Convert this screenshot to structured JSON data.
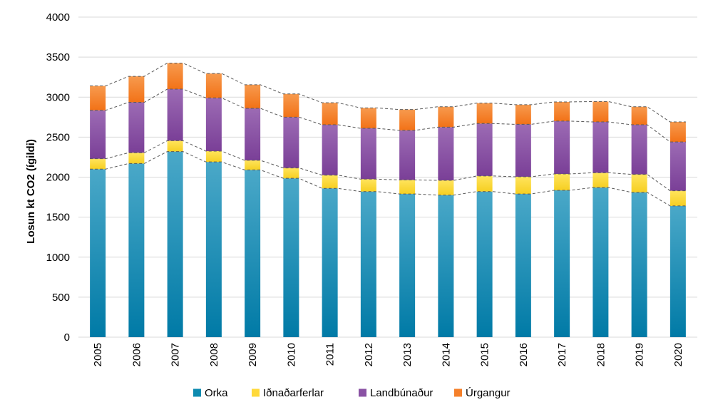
{
  "chart_data": {
    "type": "bar",
    "stacked": true,
    "title": "",
    "xlabel": "",
    "ylabel": "Losun kt CO2 (ígildi)",
    "ylim": [
      0,
      4000
    ],
    "yticks": [
      0,
      500,
      1000,
      1500,
      2000,
      2500,
      3000,
      3500,
      4000
    ],
    "grid": true,
    "legend_position": "bottom",
    "dashed_trend_lines": true,
    "categories": [
      "2005",
      "2006",
      "2007",
      "2008",
      "2009",
      "2010",
      "2011",
      "2012",
      "2013",
      "2014",
      "2015",
      "2016",
      "2017",
      "2018",
      "2019",
      "2020"
    ],
    "series": [
      {
        "name": "Orka",
        "color": "#0e8bb0",
        "values": [
          2100,
          2170,
          2320,
          2190,
          2090,
          1985,
          1860,
          1820,
          1790,
          1775,
          1820,
          1790,
          1835,
          1870,
          1810,
          1640
        ]
      },
      {
        "name": "Iðnaðarferlar",
        "color": "#ffd93a",
        "values": [
          130,
          135,
          135,
          135,
          120,
          130,
          165,
          155,
          175,
          185,
          195,
          215,
          205,
          185,
          225,
          190
        ]
      },
      {
        "name": "Landbúnaður",
        "color": "#8a52a4",
        "values": [
          605,
          630,
          645,
          665,
          650,
          635,
          630,
          635,
          620,
          665,
          655,
          655,
          660,
          635,
          620,
          610
        ]
      },
      {
        "name": "Úrgangur",
        "color": "#f5802a",
        "values": [
          305,
          325,
          325,
          305,
          295,
          290,
          275,
          255,
          260,
          255,
          255,
          245,
          240,
          255,
          225,
          250
        ]
      }
    ]
  }
}
